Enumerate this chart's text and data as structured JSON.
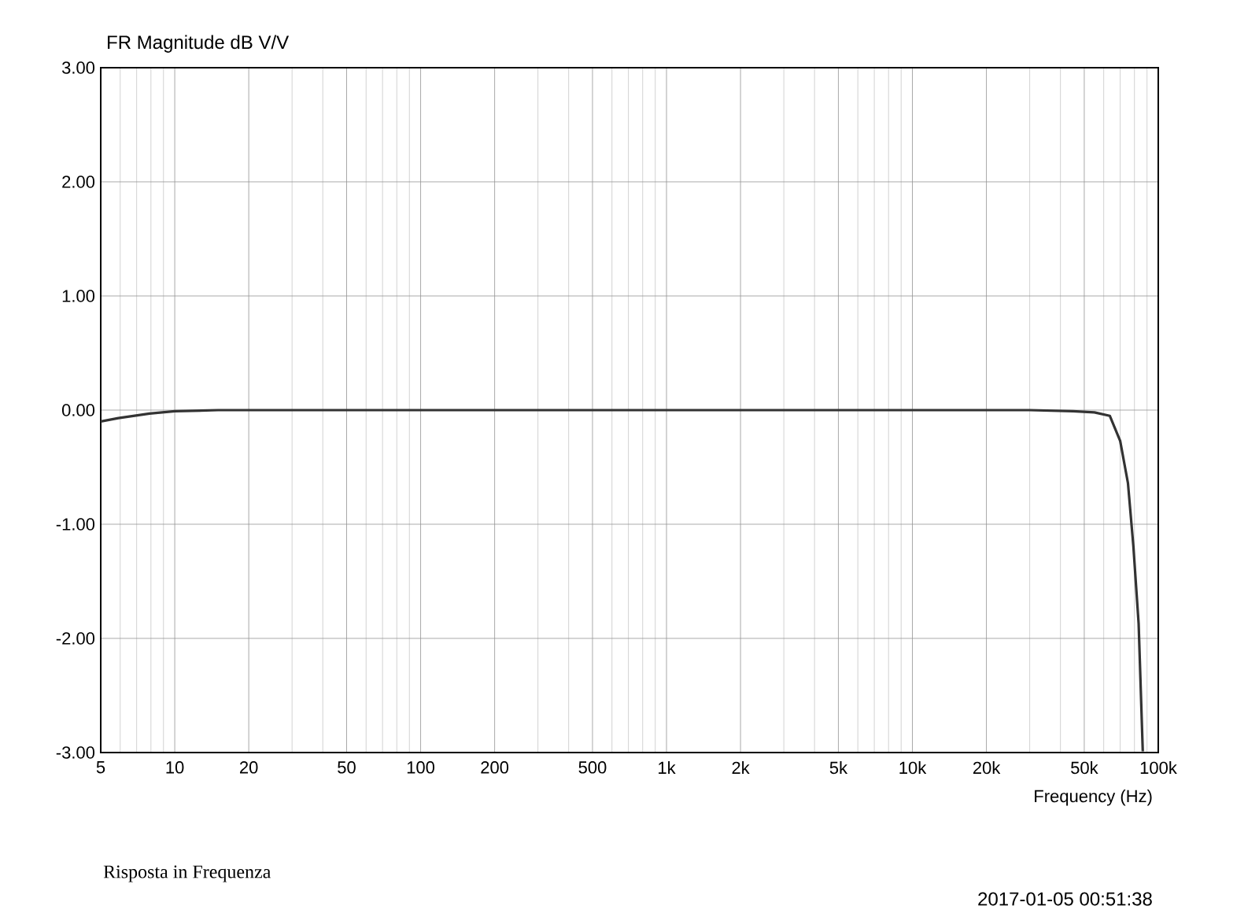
{
  "chart_data": {
    "type": "line",
    "title": "FR Magnitude dB V/V",
    "xlabel": "Frequency (Hz)",
    "log": "x",
    "grid": true,
    "annotations": [
      "Risposta in Frequenza",
      "2017-01-05  00:51:38"
    ],
    "xlim": [
      5,
      100000
    ],
    "ylim": [
      -3,
      3
    ],
    "xticks": [
      5,
      10,
      20,
      50,
      100,
      200,
      500,
      {
        "value": 1000,
        "label": "1k"
      },
      {
        "value": 2000,
        "label": "2k"
      },
      {
        "value": 5000,
        "label": "5k"
      },
      {
        "value": 10000,
        "label": "10k"
      },
      {
        "value": 20000,
        "label": "20k"
      },
      {
        "value": 50000,
        "label": "50k"
      },
      {
        "value": 100000,
        "label": "100k"
      }
    ],
    "yticks": [
      {
        "value": 3,
        "label": "3.00"
      },
      {
        "value": 2,
        "label": "2.00"
      },
      {
        "value": 1,
        "label": "1.00"
      },
      {
        "value": 0,
        "label": "0.00"
      },
      {
        "value": -1,
        "label": "-1.00"
      },
      {
        "value": -2,
        "label": "-2.00"
      },
      {
        "value": -3,
        "label": "-3.00"
      }
    ],
    "series": [
      {
        "color": "#333333",
        "x": [
          5,
          5.9,
          7.9,
          10,
          15,
          100,
          1000,
          10000,
          30000,
          45000,
          55000,
          63500,
          70000,
          75300,
          79200,
          83200,
          86500
        ],
        "values": [
          -0.1,
          -0.07,
          -0.03,
          -0.01,
          0,
          0,
          0,
          0,
          0,
          -0.01,
          -0.02,
          -0.05,
          -0.27,
          -0.64,
          -1.19,
          -1.87,
          -2.99
        ]
      }
    ]
  }
}
